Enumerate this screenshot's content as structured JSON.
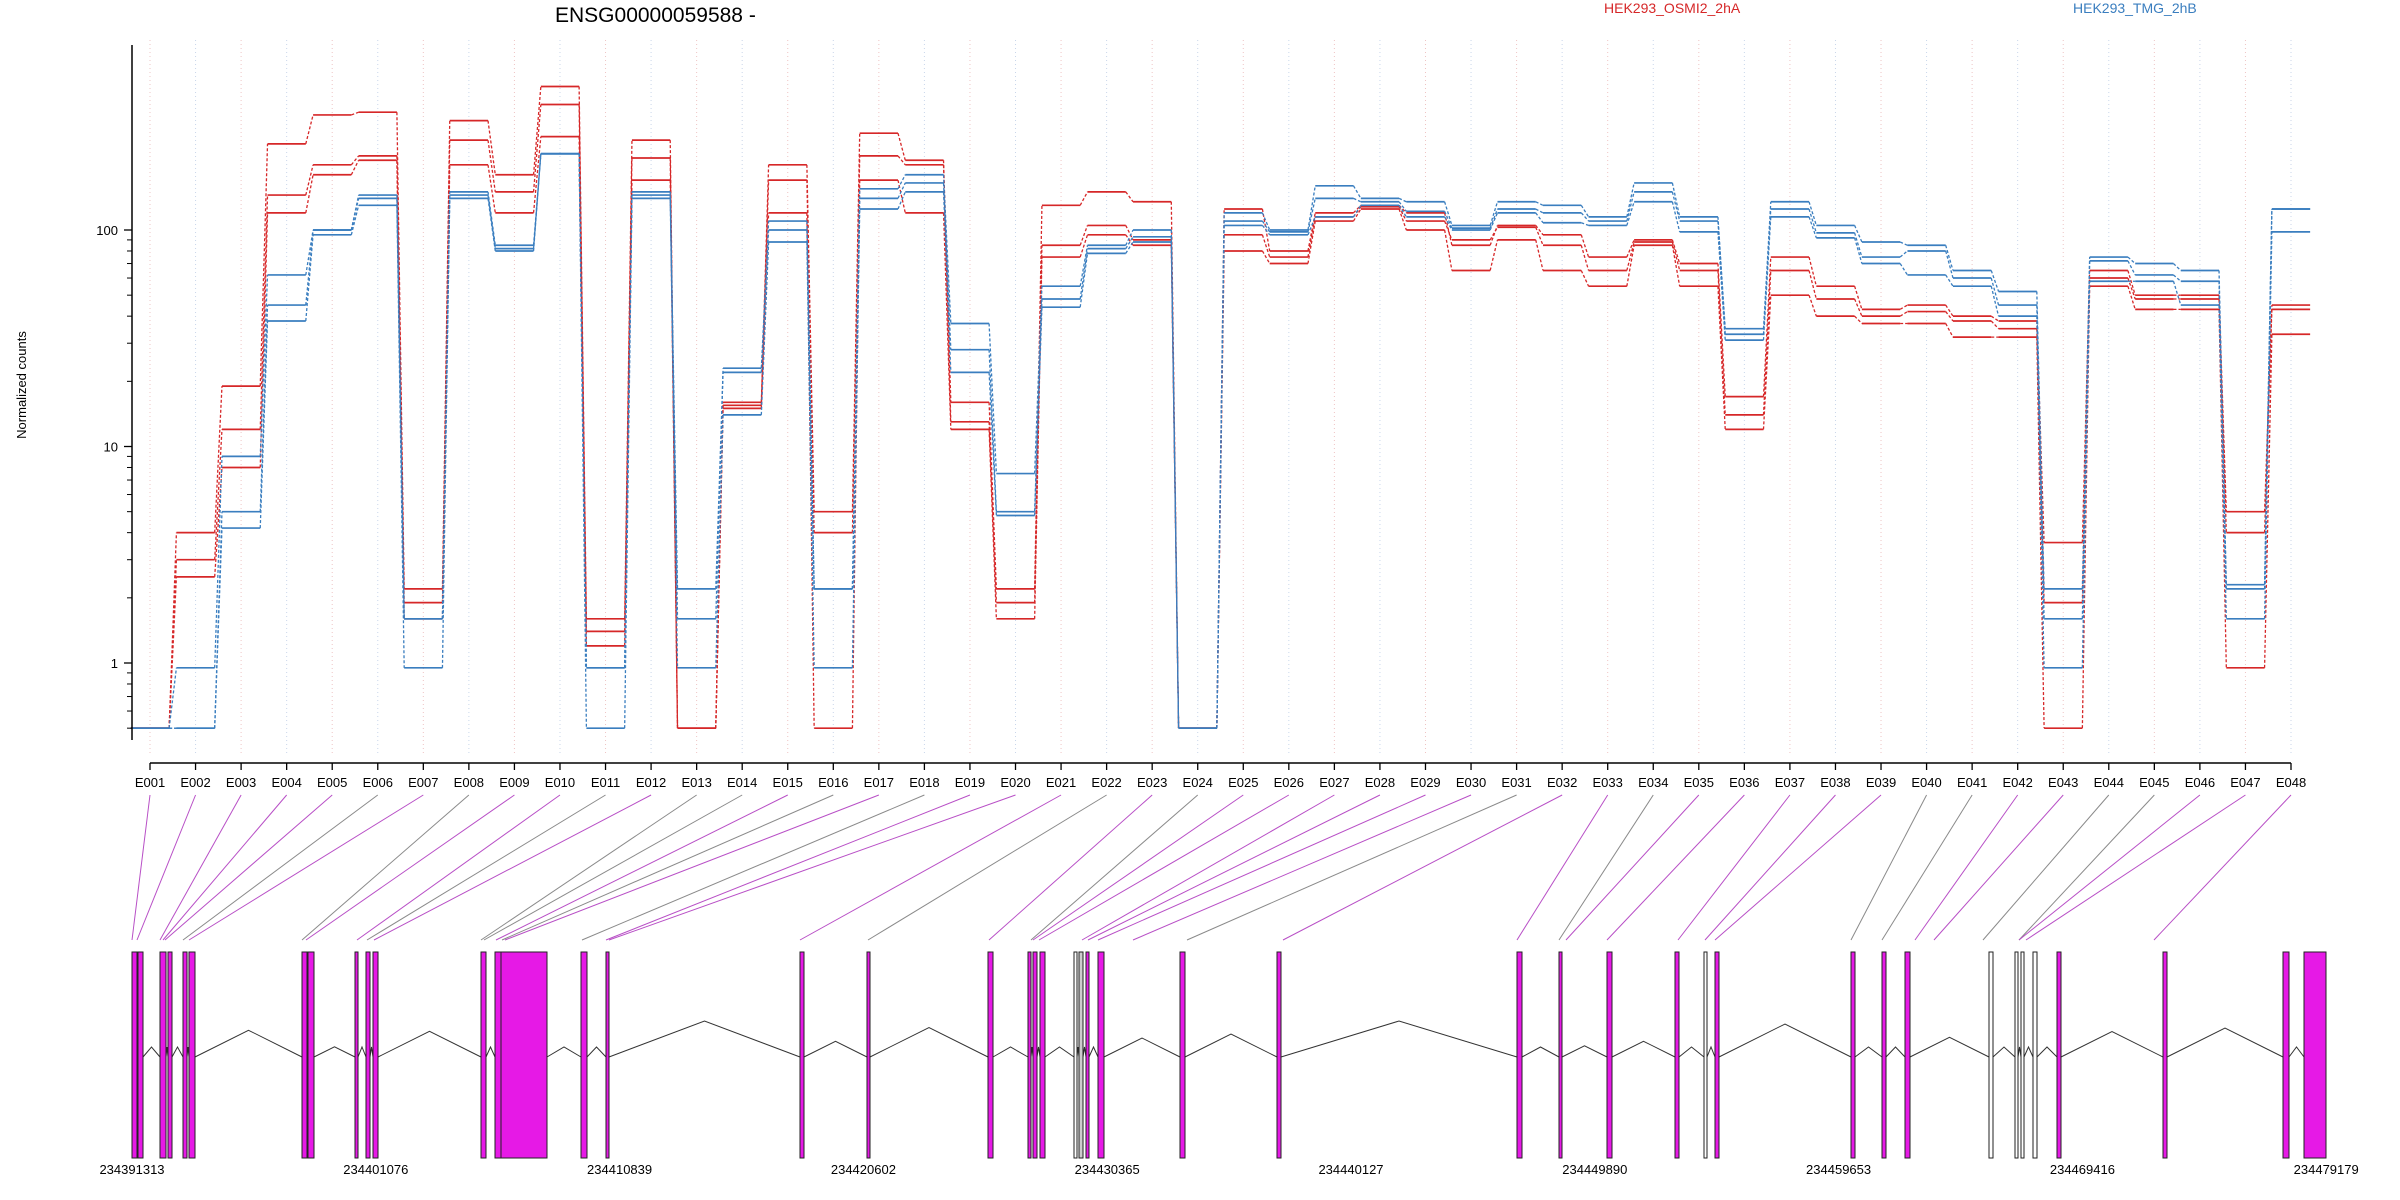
{
  "chart_data": {
    "type": "line",
    "title": "ENSG00000059588 -",
    "ylabel": "Normalized counts",
    "yscale": "log",
    "ylim": [
      0.45,
      600
    ],
    "yticks": [
      "1",
      "10",
      "100"
    ],
    "grid": "vertical",
    "legend_position": "top-right",
    "categories": [
      "E001",
      "E002",
      "E003",
      "E004",
      "E005",
      "E006",
      "E007",
      "E008",
      "E009",
      "E010",
      "E011",
      "E012",
      "E013",
      "E014",
      "E015",
      "E016",
      "E017",
      "E018",
      "E019",
      "E020",
      "E021",
      "E022",
      "E023",
      "E024",
      "E025",
      "E026",
      "E027",
      "E028",
      "E029",
      "E030",
      "E031",
      "E032",
      "E033",
      "E034",
      "E035",
      "E036",
      "E037",
      "E038",
      "E039",
      "E040",
      "E041",
      "E042",
      "E043",
      "E044",
      "E045",
      "E046",
      "E047",
      "E048"
    ],
    "series": [
      {
        "name": "HEK293_OSMI2_2hA",
        "color": "#d62728",
        "values": [
          0.5,
          4,
          19,
          250,
          340,
          350,
          2.2,
          320,
          180,
          460,
          1.6,
          260,
          0.5,
          16,
          200,
          5,
          280,
          210,
          16,
          2.2,
          130,
          150,
          135,
          0.5,
          125,
          80,
          120,
          130,
          120,
          85,
          105,
          95,
          75,
          90,
          70,
          17,
          75,
          55,
          43,
          45,
          40,
          38,
          3.6,
          65,
          50,
          50,
          5,
          45
        ]
      },
      {
        "name": "HEK293_OSMI2_2hA",
        "color": "#d62728",
        "values": [
          0.5,
          3,
          12,
          145,
          200,
          220,
          1.9,
          260,
          150,
          380,
          1.4,
          215,
          0.5,
          15.5,
          170,
          4,
          220,
          200,
          13,
          1.9,
          85,
          105,
          90,
          0.5,
          95,
          75,
          115,
          128,
          110,
          90,
          103,
          85,
          65,
          88,
          65,
          14,
          65,
          48,
          40,
          42,
          38,
          35,
          1.9,
          60,
          48,
          48,
          4,
          43
        ]
      },
      {
        "name": "HEK293_OSMI2_2hA",
        "color": "#d62728",
        "values": [
          0.5,
          2.5,
          8,
          120,
          180,
          210,
          1.6,
          200,
          120,
          270,
          1.2,
          170,
          0.5,
          15,
          120,
          0.5,
          170,
          120,
          12,
          1.6,
          75,
          95,
          85,
          0.5,
          80,
          70,
          110,
          125,
          100,
          65,
          90,
          65,
          55,
          85,
          55,
          12,
          50,
          40,
          37,
          37,
          32,
          32,
          0.5,
          55,
          43,
          43,
          0.95,
          33
        ]
      },
      {
        "name": "HEK293_TMG_2hB",
        "color": "#3a7ebf",
        "values": [
          0.5,
          0.95,
          9,
          62,
          100,
          145,
          1.6,
          150,
          85,
          225,
          0.95,
          150,
          1.6,
          23,
          110,
          2.2,
          155,
          180,
          37,
          7.5,
          55,
          85,
          100,
          0.5,
          120,
          100,
          160,
          140,
          135,
          105,
          135,
          130,
          115,
          165,
          115,
          35,
          135,
          105,
          88,
          85,
          65,
          52,
          2.2,
          75,
          70,
          65,
          2.3,
          125
        ]
      },
      {
        "name": "HEK293_TMG_2hB",
        "color": "#3a7ebf",
        "values": [
          0.5,
          0.5,
          5,
          45,
          100,
          140,
          1.6,
          145,
          82,
          225,
          0.95,
          145,
          2.2,
          22,
          100,
          2.2,
          140,
          165,
          28,
          5,
          48,
          82,
          93,
          0.5,
          110,
          98,
          140,
          135,
          122,
          102,
          125,
          120,
          110,
          150,
          110,
          33,
          125,
          97,
          75,
          80,
          60,
          45,
          1.6,
          72,
          62,
          58,
          2.2,
          125
        ]
      },
      {
        "name": "HEK293_TMG_2hB",
        "color": "#3a7ebf",
        "values": [
          0.5,
          0.5,
          4.2,
          38,
          95,
          130,
          0.95,
          140,
          80,
          225,
          0.5,
          140,
          0.95,
          14,
          88,
          0.95,
          125,
          150,
          22,
          4.8,
          44,
          78,
          88,
          0.5,
          105,
          95,
          115,
          130,
          115,
          100,
          120,
          108,
          105,
          135,
          98,
          31,
          115,
          92,
          70,
          62,
          55,
          40,
          0.95,
          58,
          58,
          45,
          1.6,
          98
        ]
      }
    ],
    "gene_model": {
      "coordinate_labels": [
        "234391313",
        "234401076",
        "234410839",
        "234420602",
        "234430365",
        "234440127",
        "234449890",
        "234459653",
        "234469416",
        "234479179"
      ]
    }
  }
}
